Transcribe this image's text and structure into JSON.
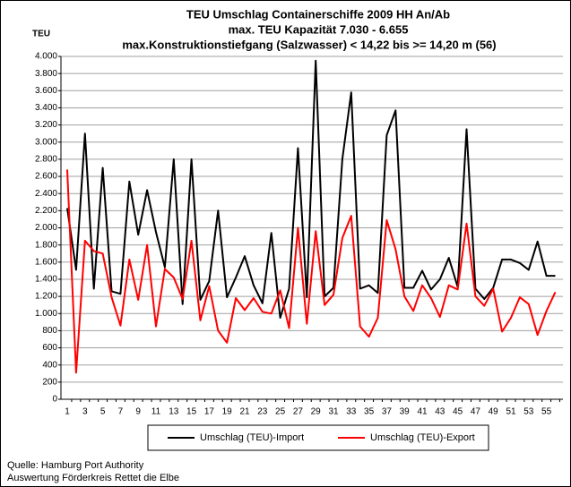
{
  "chart_data": {
    "type": "line",
    "title": [
      "TEU Umschlag Containerschiffe 2009 HH An/Ab",
      "max. TEU Kapazität  7.030 - 6.655",
      "max.Konstruktionstiefgang (Salzwasser) < 14,22  bis >= 14,20 m (56)"
    ],
    "ylabel": "TEU",
    "categories": [
      1,
      null,
      3,
      null,
      5,
      null,
      7,
      null,
      9,
      null,
      11,
      null,
      13,
      null,
      15,
      null,
      17,
      null,
      19,
      null,
      21,
      null,
      23,
      null,
      25,
      null,
      27,
      null,
      29,
      null,
      31,
      null,
      33,
      null,
      35,
      null,
      37,
      null,
      39,
      null,
      41,
      null,
      43,
      null,
      45,
      null,
      47,
      null,
      49,
      null,
      51,
      null,
      53,
      null,
      55,
      null
    ],
    "series": [
      {
        "name": "Umschlag (TEU)-Import",
        "color": "#000000",
        "values": [
          2230,
          1510,
          3100,
          1290,
          2700,
          1260,
          1230,
          2540,
          1920,
          2440,
          1950,
          1540,
          2800,
          1110,
          2800,
          1160,
          1380,
          2200,
          1190,
          1420,
          1670,
          1330,
          1120,
          1940,
          950,
          1290,
          2930,
          1190,
          3950,
          1200,
          1300,
          2800,
          3580,
          1290,
          1330,
          1240,
          3080,
          3370,
          1300,
          1300,
          1500,
          1280,
          1400,
          1650,
          1310,
          3150,
          1290,
          1170,
          1300,
          1630,
          1630,
          1590,
          1510,
          1840,
          1440,
          1440
        ]
      },
      {
        "name": "Umschlag (TEU)-Export",
        "color": "#ff0000",
        "values": [
          2680,
          310,
          1850,
          1730,
          1700,
          1190,
          860,
          1630,
          1160,
          1800,
          850,
          1520,
          1420,
          1170,
          1850,
          920,
          1320,
          800,
          660,
          1180,
          1040,
          1180,
          1020,
          1000,
          1270,
          830,
          2000,
          880,
          1960,
          1100,
          1220,
          1880,
          2140,
          850,
          730,
          950,
          2090,
          1750,
          1200,
          1030,
          1330,
          1180,
          960,
          1330,
          1280,
          2050,
          1200,
          1090,
          1290,
          790,
          950,
          1190,
          1110,
          750,
          1030,
          1250
        ]
      }
    ],
    "ylim": [
      0,
      4000
    ],
    "yticks": [
      0,
      200,
      400,
      600,
      800,
      {
        "value": 1000,
        "label": "1.000"
      },
      {
        "value": 1200,
        "label": "1.200"
      },
      {
        "value": 1400,
        "label": "1.400"
      },
      {
        "value": 1600,
        "label": "1.600"
      },
      {
        "value": 1800,
        "label": "1.800"
      },
      {
        "value": 2000,
        "label": "2.000"
      },
      {
        "value": 2200,
        "label": "2.200"
      },
      {
        "value": 2400,
        "label": "2.400"
      },
      {
        "value": 2600,
        "label": "2.600"
      },
      {
        "value": 2800,
        "label": "2.800"
      },
      {
        "value": 3000,
        "label": "3.000"
      },
      {
        "value": 3200,
        "label": "3.200"
      },
      {
        "value": 3400,
        "label": "3.400"
      },
      {
        "value": 3600,
        "label": "3.600"
      },
      {
        "value": 3800,
        "label": "3.800"
      },
      {
        "value": 4000,
        "label": "4.000"
      }
    ],
    "grid": true,
    "legend": "bottom",
    "source": [
      "Quelle: Hamburg Port Authority",
      "Auswertung Förderkreis Rettet die Elbe"
    ]
  }
}
